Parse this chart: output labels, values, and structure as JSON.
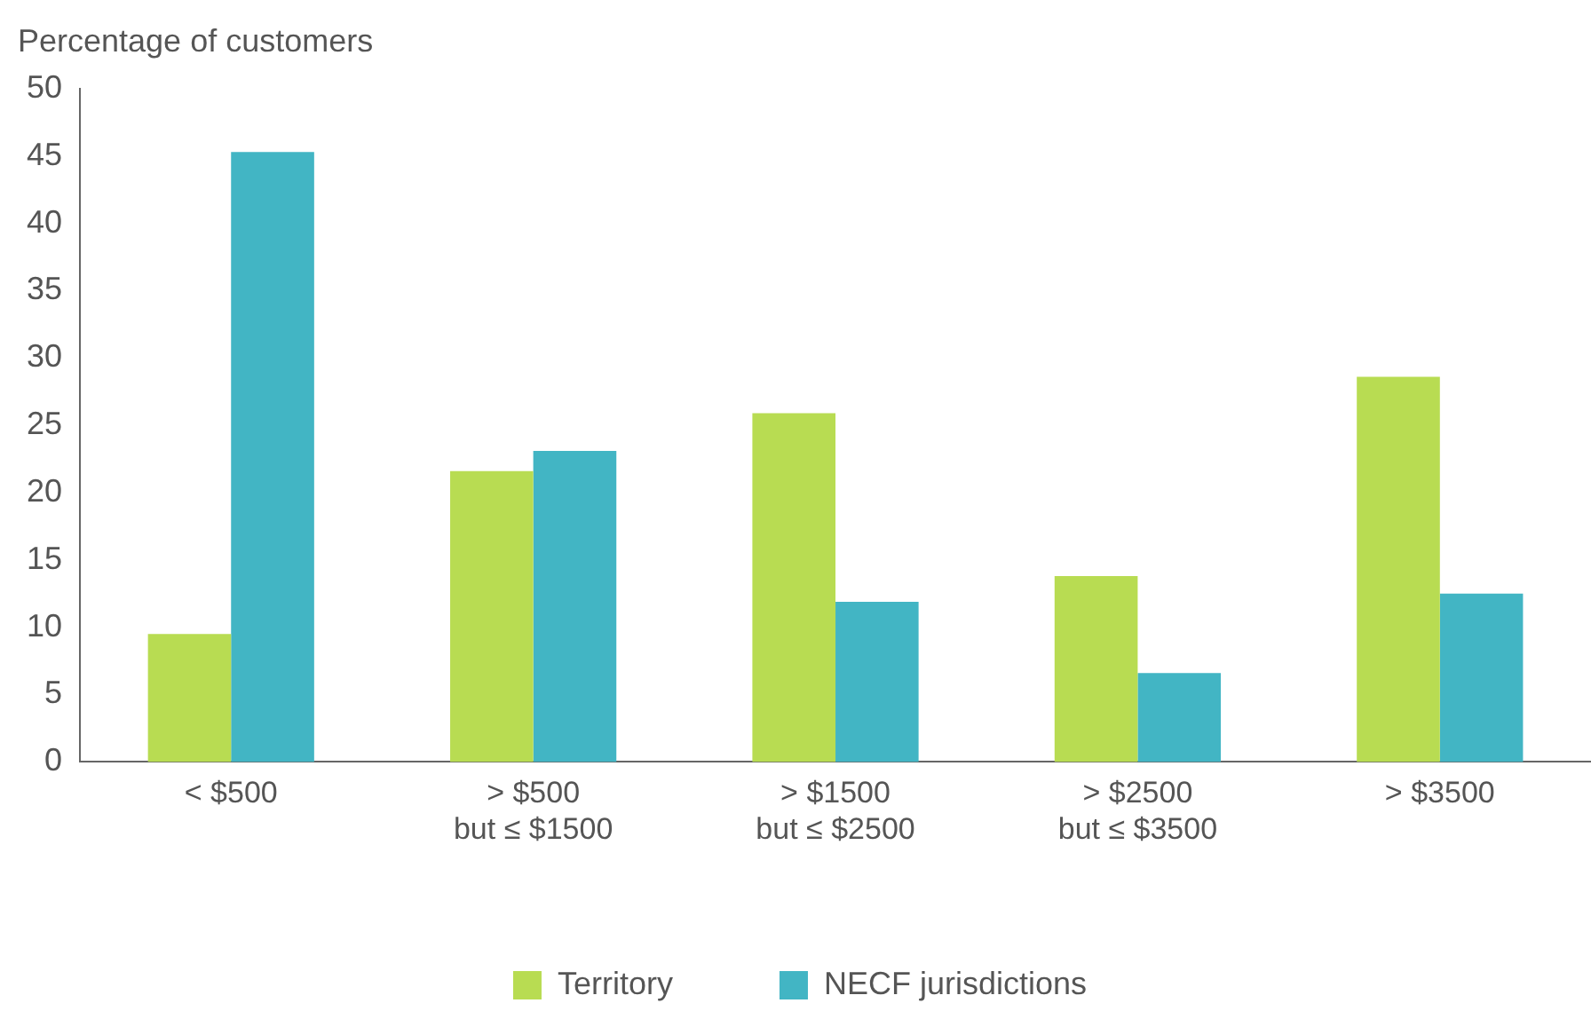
{
  "chart_data": {
    "type": "bar",
    "ylabel": "Percentage of customers",
    "categories": [
      "< $500",
      "> $500\nbut ≤ $1500",
      "> $1500\nbut ≤ $2500",
      "> $2500\nbut ≤ $3500",
      "> $3500"
    ],
    "series": [
      {
        "name": "Territory",
        "color": "#b8dc52",
        "values": [
          9.5,
          21.6,
          25.9,
          13.8,
          28.6
        ]
      },
      {
        "name": "NECF jurisdictions",
        "color": "#42b5c4",
        "values": [
          45.3,
          23.1,
          11.9,
          6.6,
          12.5
        ]
      }
    ],
    "ylim": [
      0,
      50
    ],
    "yticks": [
      0,
      5,
      10,
      15,
      20,
      25,
      30,
      35,
      40,
      45,
      50
    ],
    "grid": false,
    "legend": "bottom"
  }
}
